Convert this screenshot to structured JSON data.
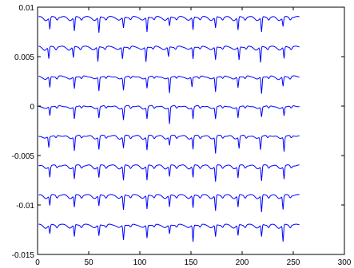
{
  "chart_data": {
    "type": "line",
    "title": "",
    "xlabel": "",
    "ylabel": "",
    "xlim": [
      0,
      300
    ],
    "ylim": [
      -0.015,
      0.01
    ],
    "x_ticks": [
      0,
      50,
      100,
      150,
      200,
      250,
      300
    ],
    "x_tick_labels": [
      "0",
      "50",
      "100",
      "150",
      "200",
      "250",
      "300"
    ],
    "y_ticks": [
      0.01,
      0.005,
      0,
      -0.005,
      -0.01,
      -0.015
    ],
    "y_tick_labels": [
      "0.01",
      "0.005",
      "0",
      "-0.005",
      "-0.01",
      "-0.015"
    ],
    "grid": false,
    "line_color": "#0000ff",
    "x_range": [
      1,
      256
    ],
    "series": [
      {
        "baseline": 0.009,
        "dips": [
          [
            12,
            0.0012
          ],
          [
            36,
            0.0014
          ],
          [
            60,
            0.0016
          ],
          [
            84,
            0.0011
          ],
          [
            107,
            0.0015
          ],
          [
            129,
            0.0009
          ],
          [
            152,
            0.0013
          ],
          [
            174,
            0.0011
          ],
          [
            196,
            0.0013
          ],
          [
            219,
            0.0015
          ],
          [
            240,
            0.0009
          ]
        ]
      },
      {
        "baseline": 0.006,
        "dips": [
          [
            11,
            0.0012
          ],
          [
            35,
            0.0011
          ],
          [
            59,
            0.0015
          ],
          [
            83,
            0.0012
          ],
          [
            106,
            0.0015
          ],
          [
            128,
            0.001
          ],
          [
            152,
            0.0012
          ],
          [
            174,
            0.0013
          ],
          [
            197,
            0.0013
          ],
          [
            218,
            0.0016
          ],
          [
            241,
            0.0012
          ]
        ]
      },
      {
        "baseline": 0.003,
        "dips": [
          [
            12,
            0.0011
          ],
          [
            36,
            0.0012
          ],
          [
            60,
            0.0014
          ],
          [
            84,
            0.0013
          ],
          [
            107,
            0.0011
          ],
          [
            129,
            0.0016
          ],
          [
            151,
            0.001
          ],
          [
            174,
            0.0015
          ],
          [
            196,
            0.0011
          ],
          [
            219,
            0.0017
          ],
          [
            240,
            0.001
          ]
        ]
      },
      {
        "baseline": 0.0,
        "dips": [
          [
            12,
            0.0009
          ],
          [
            36,
            0.0012
          ],
          [
            60,
            0.0011
          ],
          [
            84,
            0.0013
          ],
          [
            107,
            0.0012
          ],
          [
            129,
            0.0017
          ],
          [
            152,
            0.0012
          ],
          [
            174,
            0.0012
          ],
          [
            196,
            0.0011
          ],
          [
            219,
            0.001
          ],
          [
            241,
            0.0009
          ]
        ]
      },
      {
        "baseline": -0.003,
        "dips": [
          [
            11,
            0.0011
          ],
          [
            36,
            0.0014
          ],
          [
            60,
            0.0013
          ],
          [
            84,
            0.0012
          ],
          [
            107,
            0.0014
          ],
          [
            129,
            0.0009
          ],
          [
            152,
            0.0013
          ],
          [
            174,
            0.0017
          ],
          [
            197,
            0.0012
          ],
          [
            218,
            0.0013
          ],
          [
            241,
            0.0015
          ]
        ]
      },
      {
        "baseline": -0.006,
        "dips": [
          [
            12,
            0.0011
          ],
          [
            36,
            0.0013
          ],
          [
            60,
            0.0012
          ],
          [
            84,
            0.0015
          ],
          [
            107,
            0.0015
          ],
          [
            129,
            0.0011
          ],
          [
            152,
            0.0012
          ],
          [
            174,
            0.0016
          ],
          [
            196,
            0.0012
          ],
          [
            219,
            0.0015
          ],
          [
            241,
            0.0013
          ]
        ]
      },
      {
        "baseline": -0.009,
        "dips": [
          [
            12,
            0.001
          ],
          [
            36,
            0.0012
          ],
          [
            60,
            0.0011
          ],
          [
            84,
            0.0015
          ],
          [
            107,
            0.0014
          ],
          [
            129,
            0.0012
          ],
          [
            152,
            0.0013
          ],
          [
            174,
            0.0016
          ],
          [
            196,
            0.0012
          ],
          [
            219,
            0.0017
          ],
          [
            240,
            0.0014
          ]
        ]
      },
      {
        "baseline": -0.012,
        "dips": [
          [
            12,
            0.0009
          ],
          [
            36,
            0.0012
          ],
          [
            60,
            0.0011
          ],
          [
            84,
            0.0015
          ],
          [
            107,
            0.0013
          ],
          [
            129,
            0.0009
          ],
          [
            152,
            0.0017
          ],
          [
            174,
            0.0012
          ],
          [
            196,
            0.0011
          ],
          [
            219,
            0.0012
          ],
          [
            240,
            0.0017
          ]
        ]
      }
    ]
  }
}
